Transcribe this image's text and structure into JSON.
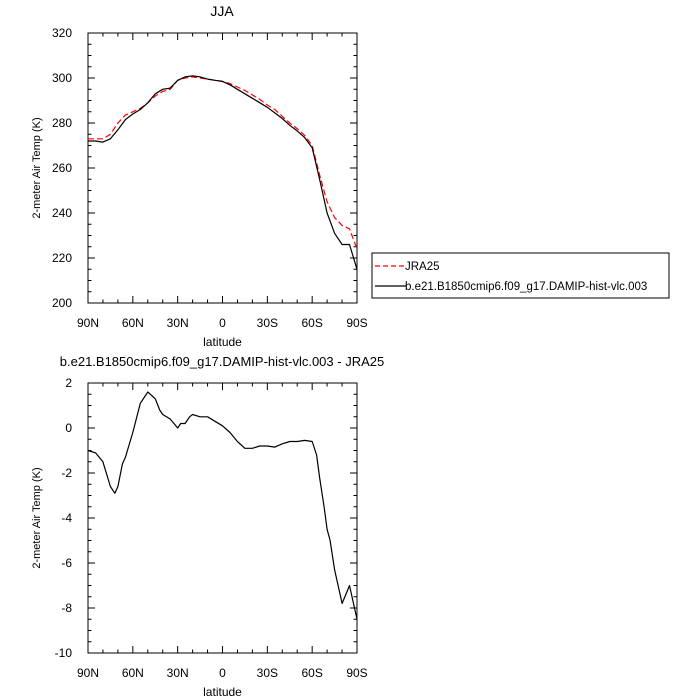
{
  "chart_data": [
    {
      "type": "line",
      "title": "JJA",
      "xlabel": "latitude",
      "ylabel": "2-meter Air Temp (K)",
      "xlim": [
        90,
        -90
      ],
      "ylim": [
        200,
        320
      ],
      "xticks": [
        90,
        60,
        30,
        0,
        -30,
        -60,
        -90
      ],
      "xtick_labels": [
        "90N",
        "60N",
        "30N",
        "0",
        "30S",
        "60S",
        "90S"
      ],
      "yticks": [
        200,
        220,
        240,
        260,
        280,
        300,
        320
      ],
      "ytick_labels": [
        "200",
        "220",
        "240",
        "260",
        "280",
        "300",
        "320"
      ],
      "legend_position": "outside-right-bottom",
      "series": [
        {
          "name": "JRA25",
          "color": "#ff0000",
          "dash": "dashed",
          "x": [
            90,
            85,
            80,
            75,
            70,
            65,
            60,
            55,
            50,
            45,
            40,
            35,
            30,
            25,
            20,
            15,
            10,
            5,
            0,
            -5,
            -10,
            -15,
            -20,
            -25,
            -30,
            -35,
            -40,
            -45,
            -50,
            -55,
            -60,
            -65,
            -70,
            -75,
            -80,
            -85,
            -90
          ],
          "y": [
            273,
            273,
            273,
            275,
            280,
            283.5,
            285,
            286.5,
            289,
            292,
            294,
            295,
            299,
            300,
            300.5,
            300,
            299.5,
            299,
            298.5,
            297.5,
            296,
            294.5,
            292.5,
            290.5,
            288,
            286,
            283,
            280,
            277.5,
            274.5,
            270,
            257,
            245,
            238,
            234.5,
            233,
            224
          ]
        },
        {
          "name": "b.e21.B1850cmip6.f09_g17.DAMIP-hist-vlc.003",
          "color": "#000000",
          "dash": "solid",
          "x": [
            90,
            85,
            80,
            75,
            70,
            65,
            60,
            55,
            50,
            45,
            40,
            35,
            30,
            25,
            20,
            15,
            10,
            5,
            0,
            -5,
            -10,
            -15,
            -20,
            -25,
            -30,
            -35,
            -40,
            -45,
            -50,
            -55,
            -60,
            -65,
            -70,
            -75,
            -80,
            -85,
            -90
          ],
          "y": [
            272,
            272,
            271.5,
            273,
            277,
            281.5,
            284,
            286,
            289,
            293,
            295,
            295.5,
            299,
            300.5,
            301,
            300.5,
            299.5,
            299,
            298.5,
            297,
            295,
            293,
            291,
            289,
            287,
            284.5,
            282,
            279,
            276.5,
            273.5,
            269,
            255,
            240,
            231,
            226,
            226,
            215
          ]
        }
      ]
    },
    {
      "type": "line",
      "title": "b.e21.B1850cmip6.f09_g17.DAMIP-hist-vlc.003 - JRA25",
      "xlabel": "latitude",
      "ylabel": "2-meter Air Temp (K)",
      "xlim": [
        90,
        -90
      ],
      "ylim": [
        -10,
        2
      ],
      "xticks": [
        90,
        60,
        30,
        0,
        -30,
        -60,
        -90
      ],
      "xtick_labels": [
        "90N",
        "60N",
        "30N",
        "0",
        "30S",
        "60S",
        "90S"
      ],
      "yticks": [
        -10,
        -8,
        -6,
        -4,
        -2,
        0,
        2
      ],
      "ytick_labels": [
        "-10",
        "-8",
        "-6",
        "-4",
        "-2",
        "0",
        "2"
      ],
      "series": [
        {
          "color": "#000000",
          "dash": "solid",
          "x": [
            90,
            85,
            80,
            75,
            72,
            70,
            67,
            65,
            60,
            55,
            50,
            45,
            42,
            40,
            35,
            30,
            28,
            25,
            22,
            20,
            15,
            10,
            5,
            0,
            -5,
            -10,
            -15,
            -20,
            -25,
            -30,
            -35,
            -40,
            -45,
            -50,
            -55,
            -60,
            -63,
            -65,
            -68,
            -70,
            -72,
            -75,
            -80,
            -85,
            -90
          ],
          "y": [
            -1,
            -1.1,
            -1.5,
            -2.6,
            -2.9,
            -2.6,
            -1.6,
            -1.3,
            -0.2,
            1.1,
            1.6,
            1.3,
            0.8,
            0.6,
            0.4,
            0.0,
            0.2,
            0.2,
            0.5,
            0.6,
            0.5,
            0.5,
            0.3,
            0.1,
            -0.2,
            -0.6,
            -0.9,
            -0.9,
            -0.8,
            -0.8,
            -0.85,
            -0.7,
            -0.6,
            -0.6,
            -0.55,
            -0.6,
            -1.2,
            -2.2,
            -3.5,
            -4.5,
            -5.0,
            -6.3,
            -7.8,
            -7.0,
            -8.5
          ]
        }
      ]
    }
  ]
}
